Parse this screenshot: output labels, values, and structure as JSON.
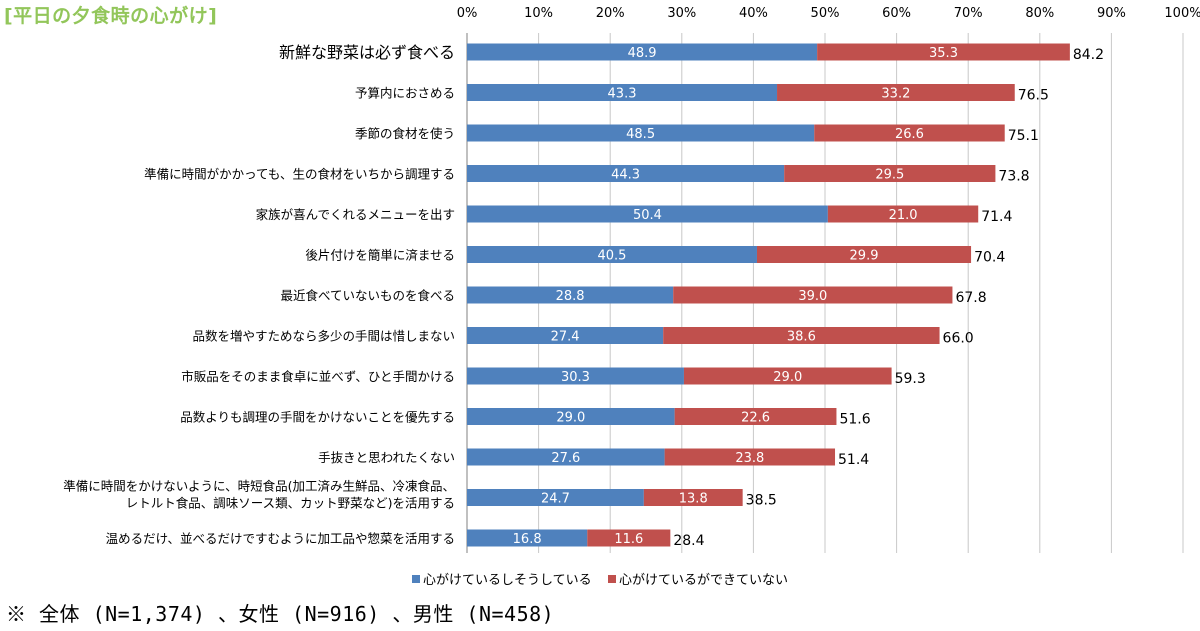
{
  "title": "[平日の夕食時の心がけ]",
  "footnote": "※  全体 (N=1,374) 、女性 (N=916) 、男性 (N=458)",
  "chart_data": {
    "type": "bar",
    "orientation": "horizontal",
    "stacked": true,
    "xlim": [
      0,
      100
    ],
    "x_ticks": [
      "0%",
      "10%",
      "20%",
      "30%",
      "40%",
      "50%",
      "60%",
      "70%",
      "80%",
      "90%",
      "100%"
    ],
    "x_axis_position": "top",
    "grid": true,
    "legend_position": "bottom",
    "categories": [
      [
        "新鮮な野菜は必ず食べる"
      ],
      [
        "予算内におさめる"
      ],
      [
        "季節の食材を使う"
      ],
      [
        "準備に時間がかかっても、生の食材をいちから調理する"
      ],
      [
        "家族が喜んでくれるメニューを出す"
      ],
      [
        "後片付けを簡単に済ませる"
      ],
      [
        "最近食べていないものを食べる"
      ],
      [
        "品数を増やすためなら多少の手間は惜しまない"
      ],
      [
        "市販品をそのまま食卓に並べず、ひと手間かける"
      ],
      [
        "品数よりも調理の手間をかけないことを優先する"
      ],
      [
        "手抜きと思われたくない"
      ],
      [
        "準備に時間をかけないように、時短食品(加工済み生鮮品、冷凍食品、",
        "レトルト食品、調味ソース類、カット野菜など)を活用する"
      ],
      [
        "温めるだけ、並べるだけですむように加工品や惣菜を活用する"
      ]
    ],
    "series": [
      {
        "name": "心がけているしそうしている",
        "color": "#4f81bd",
        "values": [
          48.9,
          43.3,
          48.5,
          44.3,
          50.4,
          40.5,
          28.8,
          27.4,
          30.3,
          29.0,
          27.6,
          24.7,
          16.8
        ]
      },
      {
        "name": "心がけているができていない",
        "color": "#c0504d",
        "values": [
          35.3,
          33.2,
          26.6,
          29.5,
          21.0,
          29.9,
          39.0,
          38.6,
          29.0,
          22.6,
          23.8,
          13.8,
          11.6
        ]
      }
    ],
    "totals": [
      "84.2",
      "76.5",
      "75.1",
      "73.8",
      "71.4",
      "70.4",
      "67.8",
      "66.0",
      "59.3",
      "51.6",
      "51.4",
      "38.5",
      "28.4"
    ],
    "series_labels": [
      [
        "48.9",
        "35.3"
      ],
      [
        "43.3",
        "33.2"
      ],
      [
        "48.5",
        "26.6"
      ],
      [
        "44.3",
        "29.5"
      ],
      [
        "50.4",
        "21.0"
      ],
      [
        "40.5",
        "29.9"
      ],
      [
        "28.8",
        "39.0"
      ],
      [
        "27.4",
        "38.6"
      ],
      [
        "30.3",
        "29.0"
      ],
      [
        "29.0",
        "22.6"
      ],
      [
        "27.6",
        "23.8"
      ],
      [
        "24.7",
        "13.8"
      ],
      [
        "16.8",
        "11.6"
      ]
    ]
  }
}
